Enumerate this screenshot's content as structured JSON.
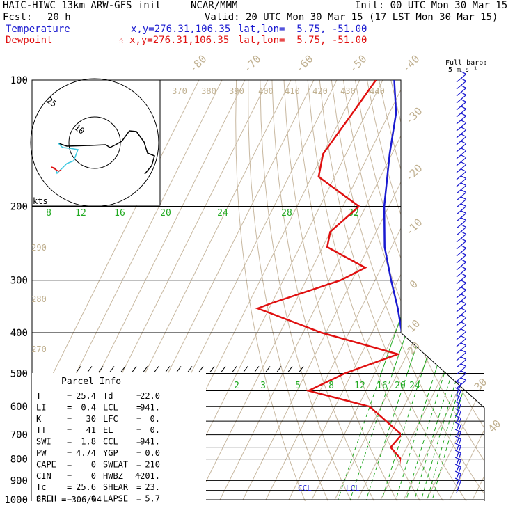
{
  "header": {
    "model": "HAIC-HIWC 13km ARW-GFS init",
    "org": "NCAR/MMM",
    "init": "Init: 00 UTC Mon 30 Mar 15",
    "fcst_label": "Fcst:",
    "fcst_value": "20 h",
    "valid": "Valid: 20 UTC Mon 30 Mar 15 (17 LST Mon 30 Mar 15)",
    "temperature_label": "Temperature",
    "dewpoint_label": "Dewpoint",
    "temp_xy": "x,y=276.31,106.35",
    "temp_latlon": "lat,lon=  5.75, -51.00",
    "dew_marker": "☆",
    "dew_xy": "x,y=276.31,106.35",
    "dew_latlon": "lat,lon=  5.75, -51.00",
    "barb_title_1": "Full barb:",
    "barb_title_2": "5 m s⁻¹"
  },
  "colors": {
    "temperature": "#1a1ad0",
    "dewpoint": "#e01010",
    "isotherm": "#c8b8a0",
    "dry_adiabat_label": "#c0b090",
    "mixing_ratio": "#22aa22",
    "isobar": "#000000"
  },
  "chart_data": {
    "type": "line",
    "title": "",
    "xlabel": "",
    "ylabel": "",
    "y_axis": "pressure (hPa), log scale, inverted",
    "pressure_ticks": [
      "100",
      "200",
      "300",
      "400",
      "500",
      "600",
      "700",
      "800",
      "900",
      "1000"
    ],
    "isotherm_labels": [
      "-80",
      "-70",
      "-60",
      "-50",
      "-40",
      "-30",
      "-20",
      "-10",
      "0",
      "10",
      "20",
      "30",
      "40"
    ],
    "theta_labels": [
      "370",
      "380",
      "390",
      "400",
      "410",
      "420",
      "430",
      "440",
      "290",
      "280",
      "270"
    ],
    "mixing_ratio_upper_labels": [
      "8",
      "12",
      "16",
      "20",
      "24",
      "28",
      "32"
    ],
    "mixing_ratio_lower_labels": [
      "2",
      "3",
      "5",
      "8",
      "12",
      "16",
      "20",
      "24"
    ],
    "series": [
      {
        "name": "Temperature",
        "points": [
          [
            100,
            -75
          ],
          [
            120,
            -67
          ],
          [
            150,
            -61
          ],
          [
            200,
            -52
          ],
          [
            250,
            -43
          ],
          [
            300,
            -33
          ],
          [
            350,
            -24
          ],
          [
            400,
            -17
          ],
          [
            450,
            -10
          ],
          [
            500,
            -5
          ],
          [
            600,
            1
          ],
          [
            700,
            8
          ],
          [
            800,
            14
          ],
          [
            850,
            19
          ],
          [
            900,
            21
          ],
          [
            950,
            23
          ],
          [
            1000,
            25.4
          ]
        ]
      },
      {
        "name": "Dewpoint",
        "points": [
          [
            100,
            -83
          ],
          [
            120,
            -86
          ],
          [
            150,
            -90
          ],
          [
            170,
            -87
          ],
          [
            200,
            -63
          ],
          [
            230,
            -70
          ],
          [
            250,
            -68
          ],
          [
            280,
            -47
          ],
          [
            300,
            -55
          ],
          [
            340,
            -80
          ],
          [
            350,
            -85
          ],
          [
            400,
            -52
          ],
          [
            450,
            -14
          ],
          [
            500,
            -33
          ],
          [
            550,
            -45
          ],
          [
            600,
            -15
          ],
          [
            700,
            5
          ],
          [
            750,
            3
          ],
          [
            800,
            10
          ],
          [
            850,
            13
          ],
          [
            900,
            18
          ],
          [
            950,
            21
          ],
          [
            1000,
            22
          ]
        ]
      }
    ],
    "levels_labels": {
      "ccl": "CCL",
      "lcl": "LCL"
    }
  },
  "hodograph": {
    "label_kts": "kts",
    "ring_labels": [
      "25",
      "10"
    ]
  },
  "parcel_info": {
    "title": "Parcel Info",
    "rows": [
      {
        "k1": "T",
        "v1": "25.4",
        "k2": "Td",
        "v2": "22.0"
      },
      {
        "k1": "LI",
        "v1": "0.4",
        "k2": "LCL",
        "v2": "941."
      },
      {
        "k1": "K",
        "v1": "30",
        "k2": "LFC",
        "v2": "0."
      },
      {
        "k1": "TT",
        "v1": "41",
        "k2": "EL",
        "v2": "0."
      },
      {
        "k1": "SWI",
        "v1": "1.8",
        "k2": "CCL",
        "v2": "941."
      },
      {
        "k1": "PW",
        "v1": "4.74",
        "k2": "YGP",
        "v2": "0.0"
      },
      {
        "k1": "CAPE",
        "v1": "0",
        "k2": "SWEAT",
        "v2": "210"
      },
      {
        "k1": "CIN",
        "v1": "0",
        "k2": "HWBZ",
        "v2": "4201."
      },
      {
        "k1": "Tc",
        "v1": "25.6",
        "k2": "SHEAR",
        "v2": "23."
      },
      {
        "k1": "SREH",
        "v1": "0",
        "k2": "LAPSE",
        "v2": "5.7"
      }
    ],
    "cell_label": "CELL = 306/04"
  }
}
